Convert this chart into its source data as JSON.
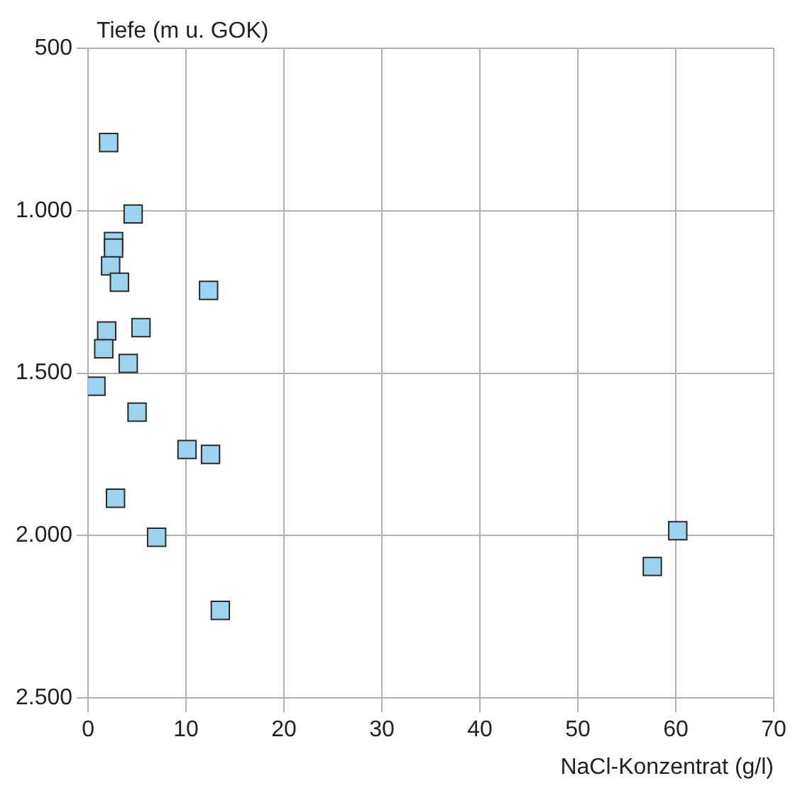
{
  "chart_data": {
    "type": "scatter",
    "xlabel": "NaCl-Konzentrat (g/l)",
    "ylabel": "Tiefe (m u. GOK)",
    "x": [
      2.1,
      4.6,
      2.6,
      2.6,
      2.3,
      3.2,
      12.3,
      5.4,
      1.9,
      1.6,
      4.1,
      0.8,
      5.0,
      10.1,
      12.5,
      2.8,
      7.0,
      13.5,
      60.2,
      57.6
    ],
    "values": [
      790,
      1010,
      1095,
      1115,
      1170,
      1220,
      1245,
      1360,
      1370,
      1425,
      1470,
      1540,
      1620,
      1735,
      1750,
      1885,
      2005,
      2230,
      1985,
      2095
    ],
    "color": "#9dd3ee",
    "marker": "square",
    "xlim": [
      0,
      70
    ],
    "xticks": [
      0,
      10,
      20,
      30,
      40,
      50,
      60,
      70
    ],
    "ylim": [
      2500,
      500
    ],
    "yticks": [
      {
        "value": 500,
        "label": "500"
      },
      {
        "value": 1000,
        "label": "1.000"
      },
      {
        "value": 1500,
        "label": "1.500"
      },
      {
        "value": 2000,
        "label": "2.000"
      },
      {
        "value": 2500,
        "label": "2.500"
      }
    ],
    "grid": true,
    "legend": false
  }
}
